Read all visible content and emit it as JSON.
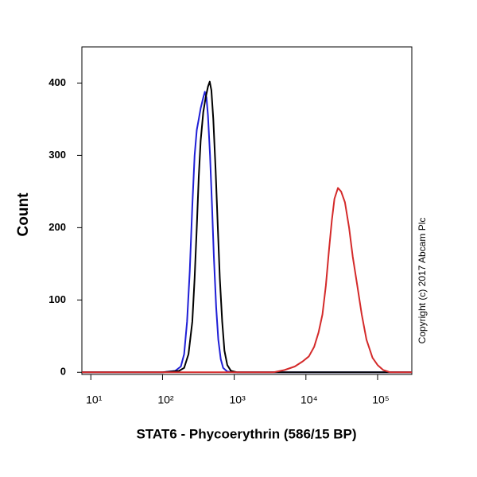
{
  "chart_data": {
    "type": "line",
    "x_scale": "log",
    "x_label": "STAT6 - Phycoerythrin (586/15 BP)",
    "y_label": "Count",
    "annotation": "Copyright (c) 2017 Abcam Plc",
    "xlim": [
      7.5,
      300000
    ],
    "ylim": [
      -3,
      450
    ],
    "xticks": [
      {
        "value": 10,
        "label": "10¹"
      },
      {
        "value": 100,
        "label": "10²"
      },
      {
        "value": 1000,
        "label": "10³"
      },
      {
        "value": 10000,
        "label": "10⁴"
      },
      {
        "value": 100000,
        "label": "10⁵"
      }
    ],
    "yticks": [
      0,
      100,
      200,
      300,
      400
    ],
    "series": [
      {
        "color": "#1f1fd6",
        "x": [
          7.5,
          100,
          150,
          180,
          200,
          220,
          240,
          260,
          280,
          300,
          320,
          340,
          370,
          390,
          410,
          430,
          460,
          490,
          520,
          560,
          600,
          650,
          700,
          800,
          1000,
          300000
        ],
        "values": [
          0,
          0,
          2,
          8,
          25,
          70,
          140,
          230,
          300,
          335,
          350,
          365,
          380,
          388,
          380,
          355,
          300,
          230,
          160,
          90,
          45,
          18,
          6,
          1,
          0,
          0
        ]
      },
      {
        "color": "#000000",
        "x": [
          7.5,
          100,
          170,
          200,
          230,
          260,
          280,
          300,
          320,
          340,
          370,
          400,
          430,
          455,
          480,
          510,
          550,
          590,
          630,
          680,
          730,
          800,
          900,
          1100,
          300000
        ],
        "values": [
          0,
          0,
          2,
          6,
          25,
          70,
          130,
          200,
          270,
          320,
          360,
          380,
          395,
          402,
          390,
          350,
          280,
          200,
          130,
          70,
          30,
          10,
          2,
          0,
          0
        ]
      },
      {
        "color": "#d42a2a",
        "x": [
          7.5,
          3500,
          5000,
          7000,
          9000,
          11000,
          13000,
          15000,
          17000,
          19000,
          21000,
          23000,
          25000,
          28000,
          31000,
          35000,
          40000,
          45000,
          52000,
          60000,
          70000,
          85000,
          100000,
          120000,
          150000,
          300000
        ],
        "values": [
          0,
          0,
          3,
          8,
          15,
          22,
          35,
          55,
          80,
          120,
          170,
          210,
          240,
          255,
          250,
          235,
          200,
          160,
          120,
          80,
          45,
          20,
          10,
          3,
          0,
          0
        ]
      }
    ]
  }
}
